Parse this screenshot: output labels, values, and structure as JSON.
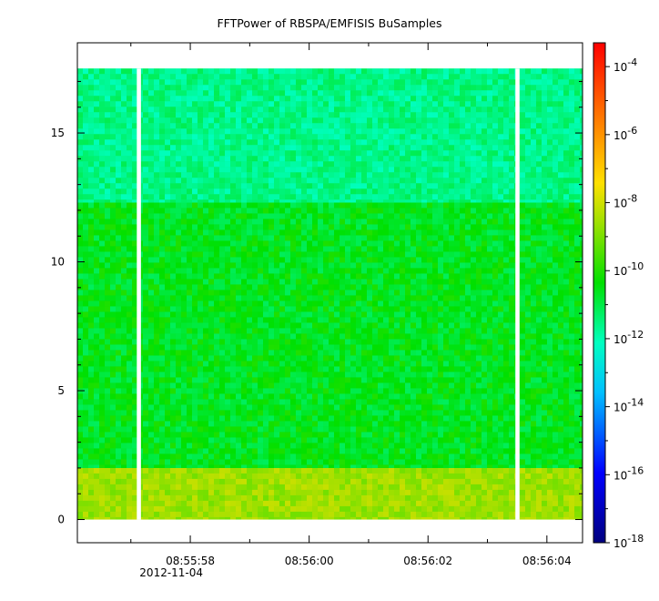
{
  "chart_data": {
    "type": "heatmap",
    "title": "FFTPower of RBSPA/EMFISIS  BuSamples",
    "xlabel": "",
    "ylabel": "",
    "x_ticks": [
      {
        "value": 58,
        "label": "08:55:58",
        "sublabel": "2012-11-04"
      },
      {
        "value": 60,
        "label": "08:56:00",
        "sublabel": ""
      },
      {
        "value": 62,
        "label": "08:56:02",
        "sublabel": ""
      },
      {
        "value": 64,
        "label": "08:56:04",
        "sublabel": ""
      }
    ],
    "x_minor_ticks": [
      57,
      59,
      61,
      63
    ],
    "xlim": [
      56.1,
      64.6
    ],
    "y_ticks": [
      {
        "value": 0,
        "label": "0"
      },
      {
        "value": 5,
        "label": "5"
      },
      {
        "value": 10,
        "label": "10"
      },
      {
        "value": 15,
        "label": "15"
      }
    ],
    "ylim": [
      -0.9,
      18.5
    ],
    "data_extent": {
      "x": [
        56.1,
        64.6
      ],
      "y": [
        0,
        17.5
      ]
    },
    "gaps_x": [
      {
        "start": 57.1,
        "end": 57.17
      },
      {
        "start": 63.47,
        "end": 63.54
      }
    ],
    "bands": [
      {
        "y": [
          0,
          2.0
        ],
        "log10_power": -8.6,
        "spread": 0.5
      },
      {
        "y": [
          2.0,
          12.3
        ],
        "log10_power": -10.6,
        "spread": 0.6
      },
      {
        "y": [
          12.3,
          17.5
        ],
        "log10_power": -11.6,
        "spread": 0.5
      }
    ],
    "colorbar": {
      "scale": "log",
      "range": [
        -18,
        -3.3
      ],
      "tick_labels": [
        {
          "base": "10",
          "exp": "-4",
          "log": -4
        },
        {
          "base": "10",
          "exp": "-6",
          "log": -6
        },
        {
          "base": "10",
          "exp": "-8",
          "log": -8
        },
        {
          "base": "10",
          "exp": "-10",
          "log": -10
        },
        {
          "base": "10",
          "exp": "-12",
          "log": -12
        },
        {
          "base": "10",
          "exp": "-14",
          "log": -14
        },
        {
          "base": "10",
          "exp": "-16",
          "log": -16
        },
        {
          "base": "10",
          "exp": "-18",
          "log": -18
        }
      ],
      "colormap": "rainbow (blue-cyan-green-yellow-red)"
    }
  }
}
